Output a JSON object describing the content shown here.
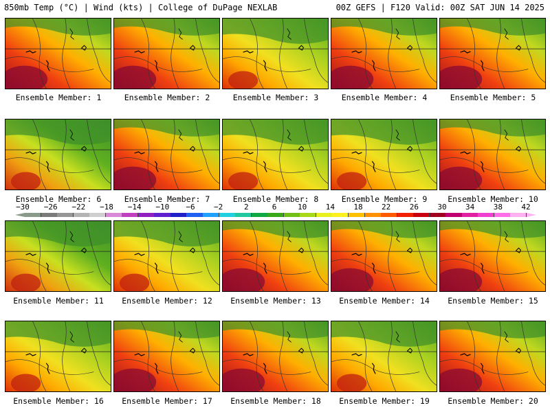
{
  "header": {
    "left": "850mb Temp (°C) | Wind (kts) | College of DuPage NEXLAB",
    "right": "00Z GEFS | F120 Valid: 00Z SAT JUN 14 2025"
  },
  "members": [
    {
      "label": "Ensemble Member: 1",
      "style": "hot"
    },
    {
      "label": "Ensemble Member: 2",
      "style": "hot"
    },
    {
      "label": "Ensemble Member: 3",
      "style": "mild"
    },
    {
      "label": "Ensemble Member: 4",
      "style": "hot"
    },
    {
      "label": "Ensemble Member: 5",
      "style": "hot"
    },
    {
      "label": "Ensemble Member: 6",
      "style": "cool"
    },
    {
      "label": "Ensemble Member: 7",
      "style": "hot"
    },
    {
      "label": "Ensemble Member: 8",
      "style": "mild"
    },
    {
      "label": "Ensemble Member: 9",
      "style": "mild"
    },
    {
      "label": "Ensemble Member: 10",
      "style": "hot"
    },
    {
      "label": "Ensemble Member: 11",
      "style": "cool"
    },
    {
      "label": "Ensemble Member: 12",
      "style": "mild"
    },
    {
      "label": "Ensemble Member: 13",
      "style": "hot"
    },
    {
      "label": "Ensemble Member: 14",
      "style": "hot"
    },
    {
      "label": "Ensemble Member: 15",
      "style": "hot"
    },
    {
      "label": "Ensemble Member: 16",
      "style": "mild"
    },
    {
      "label": "Ensemble Member: 17",
      "style": "hot"
    },
    {
      "label": "Ensemble Member: 18",
      "style": "hot"
    },
    {
      "label": "Ensemble Member: 19",
      "style": "mild"
    },
    {
      "label": "Ensemble Member: 20",
      "style": "hot"
    }
  ],
  "colorbar": {
    "labels": [
      "−30",
      "−26",
      "−22",
      "−18",
      "−14",
      "−10",
      "−6",
      "−2",
      "2",
      "6",
      "10",
      "14",
      "18",
      "22",
      "26",
      "30",
      "34",
      "38",
      "42"
    ],
    "colors": [
      "#8a9a8a",
      "#7a7a7a",
      "#969696",
      "#b4b4b4",
      "#cfcfcf",
      "#d88ad8",
      "#c040c0",
      "#9020c0",
      "#6020d0",
      "#2020c8",
      "#2060f0",
      "#20a0ff",
      "#20d0e0",
      "#20c8a0",
      "#10a840",
      "#38a818",
      "#70c018",
      "#a8d818",
      "#e8f020",
      "#fff020",
      "#ffc000",
      "#ff9000",
      "#ff5a00",
      "#f02000",
      "#c80010",
      "#a00020",
      "#c00070",
      "#e020a0",
      "#f040d0",
      "#ff70e8",
      "#ffb0f0"
    ]
  }
}
